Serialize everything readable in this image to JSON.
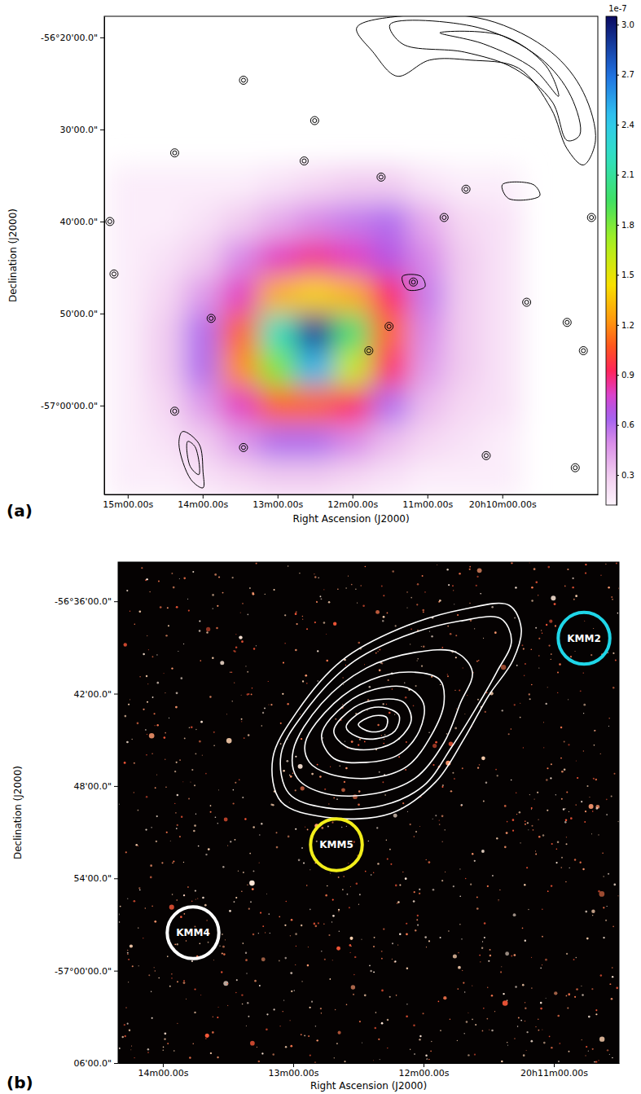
{
  "chart_data": [
    {
      "type": "heatmap",
      "panel": "(a)",
      "xlabel": "Right Ascension (J2000)",
      "ylabel": "Declination (J2000)",
      "xlim": [
        918.8,
        523.5
      ],
      "ylim": [
        -57.161,
        -56.295
      ],
      "xticks": [
        {
          "value": 900,
          "label": "15m00.00s"
        },
        {
          "value": 840,
          "label": "14m00.00s"
        },
        {
          "value": 780,
          "label": "13m00.00s"
        },
        {
          "value": 720,
          "label": "12m00.00s"
        },
        {
          "value": 660,
          "label": "11m00.00s"
        },
        {
          "value": 600,
          "label": "20h10m00.00s"
        }
      ],
      "yticks": [
        {
          "value": -56.3333,
          "label": "-56°20'00.0\""
        },
        {
          "value": -56.5,
          "label": "30'00.0\""
        },
        {
          "value": -56.6667,
          "label": "40'00.0\""
        },
        {
          "value": -56.8333,
          "label": "50'00.0\""
        },
        {
          "value": -57,
          "label": "-57°00'00.0\""
        }
      ],
      "map": {
        "ra": [
          900,
          870,
          840,
          810,
          780,
          750,
          720,
          690,
          660,
          630,
          600
        ],
        "dec": [
          -56.6,
          -56.6667,
          -56.7333,
          -56.8,
          -56.8667,
          -56.9333,
          -57,
          -57.0667,
          -57.1333
        ],
        "values": [
          [
            0.15,
            0.15,
            0.15,
            0.15,
            0.2,
            0.25,
            0.3,
            0.3,
            0.2,
            0.15,
            0.15
          ],
          [
            0.15,
            0.15,
            0.2,
            0.3,
            0.4,
            0.5,
            0.55,
            0.6,
            0.4,
            0.25,
            0.2
          ],
          [
            0.15,
            0.2,
            0.3,
            0.5,
            0.8,
            0.85,
            0.8,
            0.7,
            0.5,
            0.3,
            0.2
          ],
          [
            0.15,
            0.25,
            0.45,
            0.8,
            1.3,
            1.4,
            1.3,
            0.9,
            0.55,
            0.3,
            0.2
          ],
          [
            0.15,
            0.3,
            0.6,
            1.1,
            2.2,
            2.9,
            2.0,
            1.1,
            0.5,
            0.3,
            0.2
          ],
          [
            0.15,
            0.3,
            0.6,
            1.2,
            1.8,
            2.5,
            1.6,
            0.9,
            0.45,
            0.3,
            0.2
          ],
          [
            0.15,
            0.25,
            0.45,
            0.8,
            1.1,
            1.1,
            0.9,
            0.6,
            0.35,
            0.25,
            0.2
          ],
          [
            0.15,
            0.2,
            0.3,
            0.45,
            0.6,
            0.6,
            0.5,
            0.35,
            0.25,
            0.2,
            0.15
          ],
          [
            0.15,
            0.15,
            0.2,
            0.25,
            0.3,
            0.3,
            0.25,
            0.2,
            0.15,
            0.15,
            0.15
          ]
        ]
      },
      "colorbar_lim": [
        0.12,
        3.05
      ],
      "colorbar_ticks": [
        0.3,
        0.6,
        0.9,
        1.2,
        1.5,
        1.8,
        2.1,
        2.4,
        2.7,
        {
          "value": 3,
          "label": "3.0"
        }
      ],
      "colorbar_label": "1e-7",
      "color": "#000000",
      "contours": [
        [
          [
            716.6,
            -56.3158
          ],
          [
            677.7,
            -56.2939
          ],
          [
            612.9,
            -56.3012
          ],
          [
            561.0,
            -56.3596
          ],
          [
            535.1,
            -56.4327
          ],
          [
            525.4,
            -56.5205
          ],
          [
            535.1,
            -56.5643
          ],
          [
            548.1,
            -56.5351
          ],
          [
            561.0,
            -56.462
          ],
          [
            587.0,
            -56.3889
          ],
          [
            625.9,
            -56.3743
          ],
          [
            658.3,
            -56.3743
          ],
          [
            684.2,
            -56.4035
          ],
          [
            703.6,
            -56.3596
          ]
        ],
        [
          [
            690,
            -56.31
          ],
          [
            620,
            -56.315
          ],
          [
            570,
            -56.37
          ],
          [
            545,
            -56.44
          ],
          [
            538,
            -56.51
          ],
          [
            548,
            -56.52
          ],
          [
            560,
            -56.45
          ],
          [
            590,
            -56.39
          ],
          [
            630,
            -56.36
          ],
          [
            680,
            -56.345
          ]
        ],
        [
          [
            650,
            -56.325
          ],
          [
            600,
            -56.33
          ],
          [
            565,
            -56.385
          ],
          [
            555,
            -56.44
          ],
          [
            575,
            -56.39
          ],
          [
            615,
            -56.345
          ]
        ],
        [
          [
            600,
            -56.6
          ],
          [
            575,
            -56.6
          ],
          [
            570,
            -56.62
          ],
          [
            595,
            -56.625
          ]
        ],
        [
          [
            843,
            -57.069
          ],
          [
            856,
            -57.047
          ],
          [
            859,
            -57.069
          ],
          [
            849.4,
            -57.134
          ],
          [
            839.7,
            -57.149
          ],
          [
            839.7,
            -57.12
          ]
        ],
        [
          [
            846,
            -57.075
          ],
          [
            852,
            -57.065
          ],
          [
            850,
            -57.11
          ],
          [
            843,
            -57.125
          ]
        ],
        [
          [
            680,
            -56.766
          ],
          [
            665,
            -56.766
          ],
          [
            662,
            -56.785
          ],
          [
            676,
            -56.79
          ]
        ]
      ],
      "sources": [
        [
          750.3,
          -56.4839
        ],
        [
          697.1,
          -56.5862
        ],
        [
          646.6,
          -56.6594
        ],
        [
          629.1,
          -56.6082
        ],
        [
          580.5,
          -56.8129
        ],
        [
          548.1,
          -56.8494
        ],
        [
          535.1,
          -56.9006
        ],
        [
          541.6,
          -57.1126
        ],
        [
          612.9,
          -57.0906
        ],
        [
          690.7,
          -56.8567
        ],
        [
          706.9,
          -56.9006
        ],
        [
          807.3,
          -57.076
        ],
        [
          862.4,
          -57.0102
        ],
        [
          914.3,
          -56.6667
        ],
        [
          911.0,
          -56.7617
        ],
        [
          528.6,
          -56.6594
        ],
        [
          758.7,
          -56.557
        ],
        [
          862.4,
          -56.5424
        ],
        [
          833.2,
          -56.8421
        ],
        [
          807.3,
          -56.4108
        ],
        [
          671.2,
          -56.7763
        ]
      ]
    },
    {
      "type": "image",
      "panel": "(b)",
      "xlabel": "Right Ascension (J2000)",
      "ylabel": "Declination (J2000)",
      "xlim": [
        860.6,
        630
      ],
      "ylim": [
        -57.1,
        -56.5575
      ],
      "xticks": [
        {
          "value": 840,
          "label": "14m00.00s"
        },
        {
          "value": 780,
          "label": "13m00.00s"
        },
        {
          "value": 720,
          "label": "12m00.00s"
        },
        {
          "value": 660,
          "label": "20h11m00.00s"
        }
      ],
      "yticks": [
        {
          "value": -56.6,
          "label": "-56°36'00.0\""
        },
        {
          "value": -56.7,
          "label": "42'00.0\""
        },
        {
          "value": -56.8,
          "label": "48'00.0\""
        },
        {
          "value": -56.9,
          "label": "54'00.0\""
        },
        {
          "value": -57,
          "label": "-57°00'00.0\""
        },
        {
          "value": -57.1,
          "label": "06'00.0\""
        }
      ],
      "color": "#ffffff",
      "contours": [
        [
          [
            789.4,
            -56.7701
          ],
          [
            778.1,
            -56.719
          ],
          [
            757.5,
            -56.6638
          ],
          [
            731.3,
            -56.6298
          ],
          [
            701.3,
            -56.6085
          ],
          [
            680.6,
            -56.6043
          ],
          [
            675,
            -56.6298
          ],
          [
            678.8,
            -56.6638
          ],
          [
            690,
            -56.702
          ],
          [
            701.3,
            -56.7488
          ],
          [
            714.4,
            -56.7956
          ],
          [
            735,
            -56.8296
          ],
          [
            765,
            -56.8338
          ],
          [
            785.6,
            -56.8168
          ]
        ],
        [
          [
            785.6,
            -56.7658
          ],
          [
            774.4,
            -56.719
          ],
          [
            753.8,
            -56.6681
          ],
          [
            729.4,
            -56.6383
          ],
          [
            703.1,
            -56.6213
          ],
          [
            684.4,
            -56.6187
          ],
          [
            679.5,
            -56.6426
          ],
          [
            686.3,
            -56.6766
          ],
          [
            695.6,
            -56.7148
          ],
          [
            706.9,
            -56.7573
          ],
          [
            720,
            -56.7998
          ],
          [
            738.8,
            -56.8211
          ],
          [
            765,
            -56.8236
          ],
          [
            781.9,
            -56.8083
          ]
        ],
        [
          [
            780,
            -56.7616
          ],
          [
            766.9,
            -56.7106
          ],
          [
            746.3,
            -56.6723
          ],
          [
            723.8,
            -56.6553
          ],
          [
            705,
            -56.6553
          ],
          [
            697.5,
            -56.6766
          ],
          [
            703.1,
            -56.7106
          ],
          [
            710.6,
            -56.7531
          ],
          [
            723.8,
            -56.7914
          ],
          [
            742.5,
            -56.8083
          ],
          [
            765,
            -56.8083
          ],
          [
            778.1,
            -56.7914
          ]
        ],
        [
          [
            774.4,
            -56.7531
          ],
          [
            761.3,
            -56.7106
          ],
          [
            744.4,
            -56.6851
          ],
          [
            725.6,
            -56.6766
          ],
          [
            712.5,
            -56.6851
          ],
          [
            710.6,
            -56.7106
          ],
          [
            716.3,
            -56.7446
          ],
          [
            727.5,
            -56.7786
          ],
          [
            744.4,
            -56.7914
          ],
          [
            763.1,
            -56.7871
          ],
          [
            772.5,
            -56.7744
          ]
        ],
        [
          [
            766.9,
            -56.7446
          ],
          [
            755.6,
            -56.7106
          ],
          [
            742.5,
            -56.6953
          ],
          [
            727.5,
            -56.6936
          ],
          [
            720,
            -56.7106
          ],
          [
            721.9,
            -56.7403
          ],
          [
            731.3,
            -56.7658
          ],
          [
            746.3,
            -56.7744
          ],
          [
            761.3,
            -56.7701
          ]
        ],
        [
          [
            761.3,
            -56.7403
          ],
          [
            751.9,
            -56.7148
          ],
          [
            740.6,
            -56.7063
          ],
          [
            729.4,
            -56.7089
          ],
          [
            725.6,
            -56.7276
          ],
          [
            731.3,
            -56.7488
          ],
          [
            742.5,
            -56.7599
          ],
          [
            755.6,
            -56.7573
          ]
        ],
        [
          [
            755.6,
            -56.7361
          ],
          [
            748.1,
            -56.719
          ],
          [
            738.8,
            -56.7148
          ],
          [
            731.3,
            -56.7234
          ],
          [
            733.1,
            -56.7403
          ],
          [
            741.8,
            -56.7488
          ],
          [
            750.8,
            -56.7463
          ]
        ],
        [
          [
            750,
            -56.7335
          ],
          [
            743.3,
            -56.7242
          ],
          [
            736.9,
            -56.7259
          ],
          [
            737.6,
            -56.7378
          ],
          [
            744.4,
            -56.7412
          ]
        ]
      ],
      "regions": [
        {
          "label": "KMM2",
          "ra": 646.1,
          "dec": -56.64,
          "radius": 0.028,
          "color": "#1fd6e8"
        },
        {
          "label": "KMM5",
          "ra": 760.1,
          "dec": -56.8636,
          "radius": 0.028,
          "color": "#f2ee1a"
        },
        {
          "label": "KMM4",
          "ra": 826.1,
          "dec": -56.9589,
          "radius": 0.028,
          "color": "#ffffff"
        }
      ]
    }
  ]
}
